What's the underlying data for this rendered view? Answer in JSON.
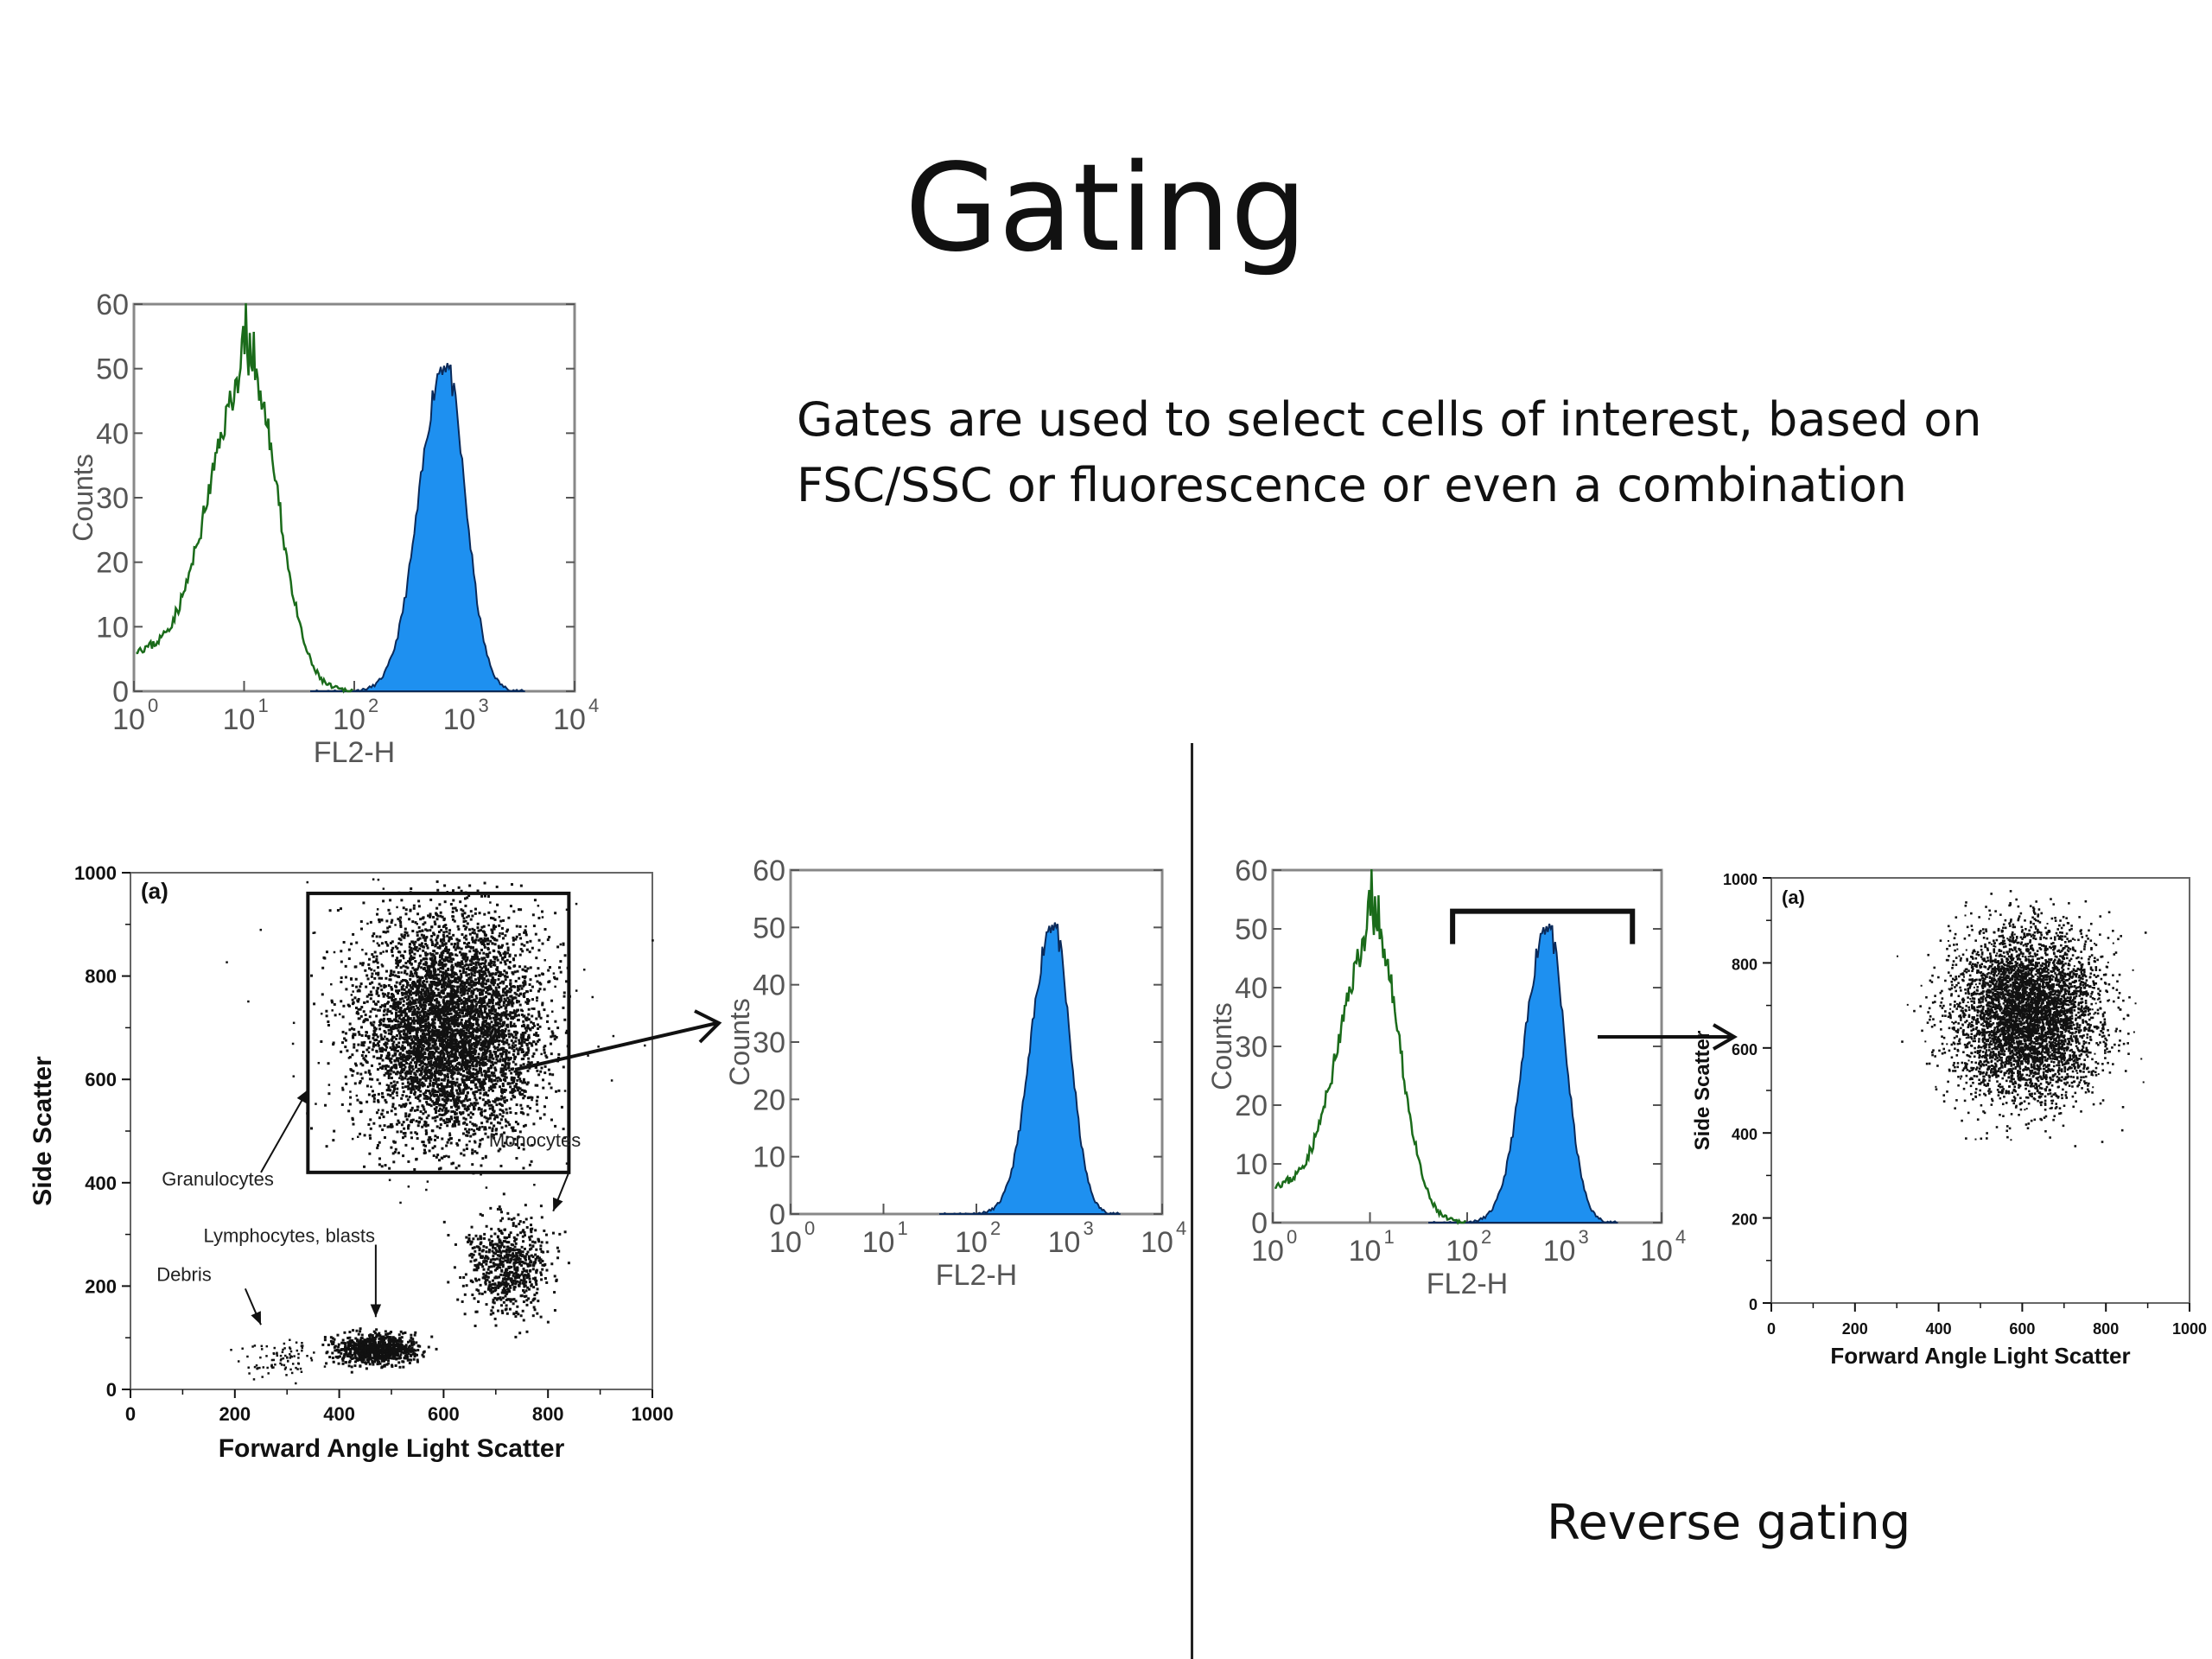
{
  "slide": {
    "title": "Gating",
    "description_line1": "Gates are used to select cells of interest, based on",
    "description_line2": "FSC/SSC or fluorescence or even a combination",
    "reverse_label": "Reverse gating"
  },
  "histogram": {
    "y_label": "Counts",
    "x_label": "FL2-H",
    "y_ticks": [
      "0",
      "10",
      "20",
      "30",
      "40",
      "50",
      "60"
    ],
    "x_tick_base": "10",
    "x_tick_exps": [
      "0",
      "1",
      "2",
      "3",
      "4"
    ],
    "fill_color": "#1e90f0",
    "line_color": "#1a6b1a"
  },
  "scatter_main": {
    "panel_label": "(a)",
    "y_label": "Side Scatter",
    "x_label": "Forward Angle Light Scatter",
    "y_ticks": [
      "0",
      "200",
      "400",
      "600",
      "800",
      "1000"
    ],
    "x_ticks": [
      "0",
      "200",
      "400",
      "600",
      "800",
      "1000"
    ],
    "annotations": {
      "granulocytes": "Granulocytes",
      "monocytes": "Monocytes",
      "lymphocytes": "Lymphocytes, blasts",
      "debris": "Debris"
    }
  },
  "scatter_small": {
    "panel_label": "(a)",
    "y_label": "Side Scatter",
    "x_label": "Forward Angle Light Scatter",
    "y_ticks": [
      "0",
      "200",
      "400",
      "600",
      "800",
      "1000"
    ],
    "x_ticks": [
      "0",
      "200",
      "400",
      "600",
      "800",
      "1000"
    ]
  }
}
